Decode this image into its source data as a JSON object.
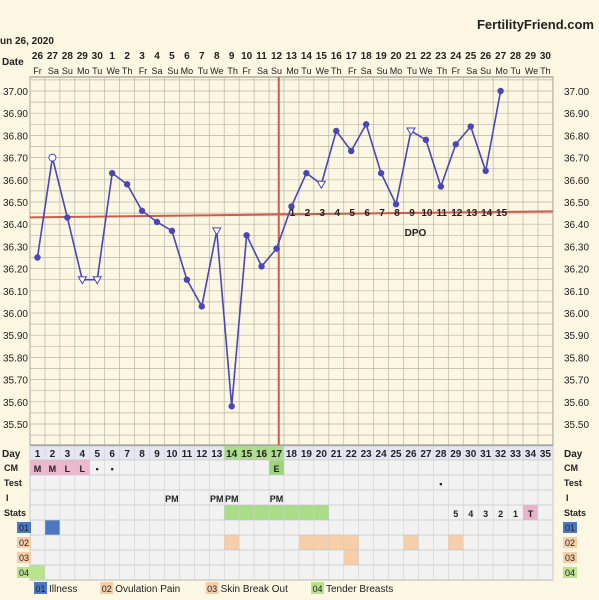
{
  "header": {
    "start_date": "un 26, 2020",
    "brand": "FertilityFriend.com",
    "date_label": "Date"
  },
  "chart_data": {
    "type": "line",
    "title": "",
    "xlabel": "Day",
    "ylabel": "",
    "ylim": [
      35.45,
      37.1
    ],
    "yticks": [
      "37.00",
      "36.90",
      "36.80",
      "36.70",
      "36.60",
      "36.50",
      "36.40",
      "36.30",
      "36.20",
      "36.10",
      "36.00",
      "35.90",
      "35.80",
      "35.70",
      "35.60",
      "35.50"
    ],
    "dates": [
      "26",
      "27",
      "28",
      "29",
      "30",
      "1",
      "2",
      "3",
      "4",
      "5",
      "6",
      "7",
      "8",
      "9",
      "10",
      "11",
      "12",
      "13",
      "14",
      "15",
      "16",
      "17",
      "18",
      "19",
      "20",
      "21",
      "22",
      "23",
      "24",
      "25",
      "26",
      "27",
      "28",
      "29",
      "30"
    ],
    "weekdays": [
      "Fr",
      "Sa",
      "Su",
      "Mo",
      "Tu",
      "We",
      "Th",
      "Fr",
      "Sa",
      "Su",
      "Mo",
      "Tu",
      "We",
      "Th",
      "Fr",
      "Sa",
      "Su",
      "Mo",
      "Tu",
      "We",
      "Th",
      "Fr",
      "Sa",
      "Su",
      "Mo",
      "Tu",
      "We",
      "Th",
      "Fr",
      "Sa",
      "Su",
      "Mo",
      "Tu",
      "We",
      "Th"
    ],
    "days": [
      1,
      2,
      3,
      4,
      5,
      6,
      7,
      8,
      9,
      10,
      11,
      12,
      13,
      14,
      15,
      16,
      17,
      18,
      19,
      20,
      21,
      22,
      23,
      24,
      25,
      26,
      27,
      28,
      29,
      30,
      31,
      32,
      33,
      34,
      35
    ],
    "temps": [
      {
        "day": 1,
        "temp": 36.25,
        "marker": "filled"
      },
      {
        "day": 2,
        "temp": 36.7,
        "marker": "open-circle"
      },
      {
        "day": 3,
        "temp": 36.43,
        "marker": "filled"
      },
      {
        "day": 4,
        "temp": 36.15,
        "marker": "triangle"
      },
      {
        "day": 5,
        "temp": 36.15,
        "marker": "triangle"
      },
      {
        "day": 6,
        "temp": 36.63,
        "marker": "filled"
      },
      {
        "day": 7,
        "temp": 36.58,
        "marker": "filled"
      },
      {
        "day": 8,
        "temp": 36.46,
        "marker": "filled"
      },
      {
        "day": 9,
        "temp": 36.41,
        "marker": "filled"
      },
      {
        "day": 10,
        "temp": 36.37,
        "marker": "filled"
      },
      {
        "day": 11,
        "temp": 36.15,
        "marker": "filled"
      },
      {
        "day": 12,
        "temp": 36.03,
        "marker": "filled"
      },
      {
        "day": 13,
        "temp": 36.37,
        "marker": "triangle"
      },
      {
        "day": 14,
        "temp": 35.58,
        "marker": "filled"
      },
      {
        "day": 15,
        "temp": 36.35,
        "marker": "filled"
      },
      {
        "day": 16,
        "temp": 36.21,
        "marker": "filled"
      },
      {
        "day": 17,
        "temp": 36.29,
        "marker": "filled"
      },
      {
        "day": 18,
        "temp": 36.48,
        "marker": "filled"
      },
      {
        "day": 19,
        "temp": 36.63,
        "marker": "filled"
      },
      {
        "day": 20,
        "temp": 36.58,
        "marker": "triangle"
      },
      {
        "day": 21,
        "temp": 36.82,
        "marker": "filled"
      },
      {
        "day": 22,
        "temp": 36.73,
        "marker": "filled"
      },
      {
        "day": 23,
        "temp": 36.85,
        "marker": "filled"
      },
      {
        "day": 24,
        "temp": 36.63,
        "marker": "filled"
      },
      {
        "day": 25,
        "temp": 36.49,
        "marker": "filled"
      },
      {
        "day": 26,
        "temp": 36.82,
        "marker": "triangle"
      },
      {
        "day": 27,
        "temp": 36.78,
        "marker": "filled"
      },
      {
        "day": 28,
        "temp": 36.57,
        "marker": "filled"
      },
      {
        "day": 29,
        "temp": 36.76,
        "marker": "filled"
      },
      {
        "day": 30,
        "temp": 36.84,
        "marker": "filled"
      },
      {
        "day": 31,
        "temp": 36.64,
        "marker": "filled"
      },
      {
        "day": 32,
        "temp": 37.0,
        "marker": "filled"
      }
    ],
    "coverline": 36.44,
    "ovulation_day": 17,
    "dpo_label": "DPO",
    "dpo": [
      {
        "day": 18,
        "n": "1"
      },
      {
        "day": 19,
        "n": "2"
      },
      {
        "day": 20,
        "n": "3"
      },
      {
        "day": 21,
        "n": "4"
      },
      {
        "day": 22,
        "n": "5"
      },
      {
        "day": 23,
        "n": "6"
      },
      {
        "day": 24,
        "n": "7"
      },
      {
        "day": 25,
        "n": "8"
      },
      {
        "day": 26,
        "n": "9"
      },
      {
        "day": 27,
        "n": "10"
      },
      {
        "day": 28,
        "n": "11"
      },
      {
        "day": 29,
        "n": "12"
      },
      {
        "day": 30,
        "n": "13"
      },
      {
        "day": 31,
        "n": "14"
      },
      {
        "day": 32,
        "n": "15"
      }
    ],
    "row_labels": {
      "day": "Day",
      "cm": "CM",
      "test": "Test",
      "i": "I",
      "stats": "Stats",
      "r01": "01",
      "r02": "02",
      "r03": "03",
      "r04": "04"
    },
    "cm": [
      {
        "day": 1,
        "v": "M"
      },
      {
        "day": 2,
        "v": "M"
      },
      {
        "day": 3,
        "v": "L"
      },
      {
        "day": 4,
        "v": "L"
      },
      {
        "day": 5,
        "v": "•"
      },
      {
        "day": 6,
        "v": "•"
      },
      {
        "day": 17,
        "v": "E"
      }
    ],
    "test": [
      {
        "day": 28,
        "v": "•"
      }
    ],
    "intercourse": [
      {
        "day": 10,
        "v": "PM"
      },
      {
        "day": 13,
        "v": "PM"
      },
      {
        "day": 14,
        "v": "PM"
      },
      {
        "day": 17,
        "v": "PM"
      }
    ],
    "stats": [
      {
        "day": 29,
        "v": "5"
      },
      {
        "day": 30,
        "v": "4"
      },
      {
        "day": 31,
        "v": "3"
      },
      {
        "day": 32,
        "v": "2"
      },
      {
        "day": 33,
        "v": "1"
      },
      {
        "day": 34,
        "v": "T"
      }
    ],
    "stats_fertile_days": [
      14,
      15,
      16,
      17,
      18,
      19,
      20
    ],
    "symptoms": {
      "r01": [
        2
      ],
      "r02": [
        14,
        19,
        20,
        21,
        22,
        26,
        29
      ],
      "r03": [
        22
      ],
      "r04": [
        1
      ]
    },
    "legend": [
      {
        "code": "01",
        "label": "Illness",
        "color": "#4a78c2"
      },
      {
        "code": "02",
        "label": "Ovulation Pain",
        "color": "#f6cfa8"
      },
      {
        "code": "03",
        "label": "Skin Break Out",
        "color": "#f6cfa8"
      },
      {
        "code": "04",
        "label": "Tender Breasts",
        "color": "#b9e38d"
      }
    ],
    "colors": {
      "line": "#4a46b8",
      "coverline": "#d05a4c",
      "ovulation": "#d05a4c",
      "grid": "#b9b6a6",
      "chart_bg": "#fbf7e2",
      "panel_bg": "#f2f2f2",
      "cm_bg": "#eeb7cc",
      "fertile_green": "#a9dd87",
      "ovulation_green": "#9bd67d",
      "row01": "#4a78c2",
      "row02": "#f6cfa8",
      "row04": "#b9e38d",
      "stats_t": "#e8b4cb"
    }
  }
}
